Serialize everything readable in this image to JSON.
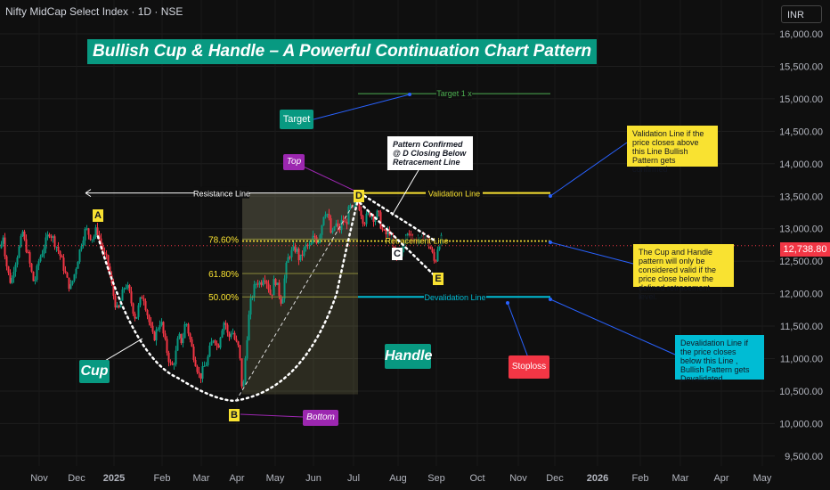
{
  "header": {
    "symbol": "Nifty MidCap Select Index · 1D · NSE",
    "currency": "INR"
  },
  "headline": "Bullish Cup & Handle – A Powerful Continuation Chart Pattern",
  "last_price_label": "12,738.80",
  "annotations": {
    "target": "Target",
    "target_line": "Target 1 x",
    "top": "Top",
    "bottom": "Bottom",
    "cup": "Cup",
    "handle": "Handle",
    "stoploss": "Stoploss",
    "resistance_line": "Resistance Line",
    "validation_line": "Validation Line",
    "retracement_line": "Retracement Line",
    "devalidation_line": "Devalidation Line",
    "pattern_confirmed": "Pattern Confirmed @ D Closing Below Retracement Line",
    "validation_note": "Validation Line if the price closes above this Line Bullish Pattern gets confirmed",
    "cup_handle_note": "The Cup and Handle pattern will only be considered valid if the price close below the defined retracement level.",
    "devalidation_note": "Devalidation Line if the price closes below this Line , Bullish Pattern gets Devalidated",
    "points": {
      "A": "A",
      "B": "B",
      "C": "C",
      "D": "D",
      "E": "E"
    }
  },
  "colors": {
    "up": "#089981",
    "down": "#f23645",
    "yellow": "#f9e231",
    "cyan": "#00bcd4",
    "accent": "#089981"
  },
  "chart_data": {
    "type": "candlestick",
    "y_axis": {
      "ticks": [
        9500,
        10000,
        10500,
        11000,
        11500,
        12000,
        12500,
        13000,
        13500,
        14000,
        14500,
        15000,
        15500,
        16000
      ],
      "tick_labels": [
        "9,500.00",
        "10,000.00",
        "10,500.00",
        "11,000.00",
        "11,500.00",
        "12,000.00",
        "12,500.00",
        "13,000.00",
        "13,500.00",
        "14,000.00",
        "14,500.00",
        "15,000.00",
        "15,500.00",
        "16,000.00"
      ],
      "range": [
        9400,
        16050
      ]
    },
    "x_axis": {
      "tick_labels": [
        "Nov",
        "Dec",
        "2025",
        "Feb",
        "Mar",
        "Apr",
        "May",
        "Jun",
        "Jul",
        "Aug",
        "Sep",
        "Oct",
        "Nov",
        "Dec",
        "2026",
        "Feb",
        "Mar",
        "Apr",
        "May"
      ]
    },
    "last_price": 12738.8,
    "levels": {
      "resistance": 13550,
      "validation": 13550,
      "target": 15080,
      "retracement": 12810,
      "devalidation": 11950
    },
    "fib_levels": [
      {
        "label": "78.60%",
        "value": 12840
      },
      {
        "label": "61.80%",
        "value": 12310
      },
      {
        "label": "50.00%",
        "value": 11950
      }
    ],
    "pivots": {
      "A": 12900,
      "B": 10350,
      "C": 12700,
      "D": 13400,
      "E": 12450
    },
    "path": [
      [
        0,
        12700
      ],
      [
        3,
        12900
      ],
      [
        6,
        12500
      ],
      [
        9,
        12300
      ],
      [
        12,
        12150
      ],
      [
        15,
        12400
      ],
      [
        18,
        12550
      ],
      [
        22,
        12750
      ],
      [
        25,
        12950
      ],
      [
        27,
        12800
      ],
      [
        30,
        12650
      ],
      [
        33,
        12450
      ],
      [
        36,
        12250
      ],
      [
        38,
        12150
      ],
      [
        40,
        12300
      ],
      [
        43,
        12500
      ],
      [
        47,
        12650
      ],
      [
        51,
        12800
      ],
      [
        55,
        12950
      ],
      [
        59,
        12850
      ],
      [
        64,
        12700
      ],
      [
        68,
        12550
      ],
      [
        72,
        12350
      ],
      [
        76,
        12150
      ],
      [
        79,
        12100
      ],
      [
        83,
        12300
      ],
      [
        88,
        12600
      ],
      [
        92,
        12850
      ],
      [
        96,
        13000
      ],
      [
        100,
        12900
      ],
      [
        104,
        12850
      ],
      [
        108,
        13000
      ],
      [
        112,
        12800
      ],
      [
        116,
        12600
      ],
      [
        120,
        12500
      ],
      [
        124,
        12200
      ],
      [
        128,
        11900
      ],
      [
        132,
        11700
      ],
      [
        136,
        11950
      ],
      [
        140,
        12150
      ],
      [
        144,
        12050
      ],
      [
        148,
        11800
      ],
      [
        152,
        11600
      ],
      [
        156,
        11850
      ],
      [
        160,
        12000
      ],
      [
        164,
        11750
      ],
      [
        168,
        11500
      ],
      [
        172,
        11300
      ],
      [
        176,
        11450
      ],
      [
        180,
        11600
      ],
      [
        184,
        11300
      ],
      [
        188,
        11050
      ],
      [
        192,
        10850
      ],
      [
        196,
        11000
      ],
      [
        200,
        11350
      ],
      [
        204,
        11250
      ],
      [
        208,
        11600
      ],
      [
        212,
        11350
      ],
      [
        216,
        11100
      ],
      [
        220,
        10900
      ],
      [
        224,
        10700
      ],
      [
        228,
        10850
      ],
      [
        232,
        10950
      ],
      [
        236,
        11200
      ],
      [
        240,
        11350
      ],
      [
        244,
        11150
      ],
      [
        248,
        11450
      ],
      [
        252,
        11600
      ],
      [
        256,
        11300
      ],
      [
        260,
        11450
      ],
      [
        264,
        11250
      ],
      [
        268,
        11150
      ],
      [
        272,
        10420
      ],
      [
        276,
        11200
      ],
      [
        280,
        11800
      ],
      [
        284,
        12050
      ],
      [
        288,
        12200
      ],
      [
        292,
        12150
      ],
      [
        296,
        12300
      ],
      [
        300,
        12150
      ],
      [
        304,
        11950
      ],
      [
        308,
        12250
      ],
      [
        312,
        12050
      ],
      [
        316,
        11850
      ],
      [
        320,
        12350
      ],
      [
        324,
        12600
      ],
      [
        328,
        12650
      ],
      [
        332,
        12700
      ],
      [
        336,
        12500
      ],
      [
        340,
        12650
      ],
      [
        344,
        12750
      ],
      [
        348,
        12700
      ],
      [
        352,
        12900
      ],
      [
        356,
        12800
      ],
      [
        360,
        13000
      ],
      [
        364,
        13300
      ],
      [
        368,
        13200
      ],
      [
        372,
        12850
      ],
      [
        376,
        13100
      ],
      [
        380,
        12950
      ],
      [
        384,
        13150
      ],
      [
        388,
        13050
      ],
      [
        392,
        13350
      ],
      [
        396,
        13250
      ],
      [
        400,
        13450
      ],
      [
        404,
        13300
      ],
      [
        408,
        13100
      ],
      [
        412,
        13200
      ],
      [
        416,
        13250
      ],
      [
        420,
        13150
      ],
      [
        424,
        13250
      ],
      [
        428,
        13000
      ],
      [
        432,
        12900
      ],
      [
        436,
        12950
      ],
      [
        440,
        12750
      ],
      [
        444,
        12550
      ],
      [
        448,
        12600
      ],
      [
        452,
        12700
      ],
      [
        456,
        12900
      ],
      [
        460,
        12950
      ],
      [
        464,
        12800
      ],
      [
        468,
        12850
      ],
      [
        472,
        12800
      ],
      [
        476,
        12900
      ],
      [
        480,
        12800
      ],
      [
        484,
        12650
      ],
      [
        488,
        12450
      ],
      [
        492,
        12800
      ],
      [
        496,
        12850
      ]
    ]
  }
}
